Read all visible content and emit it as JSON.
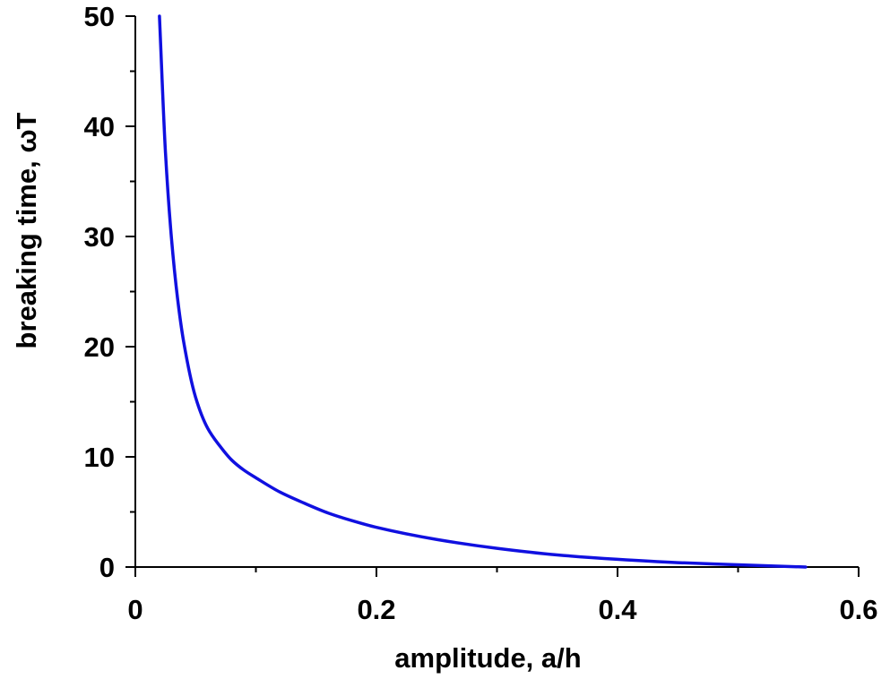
{
  "chart_data": {
    "type": "line",
    "title": "",
    "xlabel": "amplitude, a/h",
    "ylabel": "breaking time, ωT",
    "xlim": [
      0,
      0.6
    ],
    "ylim": [
      0,
      50
    ],
    "x_ticks": [
      {
        "value": 0,
        "label": "0"
      },
      {
        "value": 0.2,
        "label": "0.2"
      },
      {
        "value": 0.4,
        "label": "0.4"
      },
      {
        "value": 0.6,
        "label": "0.6"
      }
    ],
    "y_ticks": [
      {
        "value": 0,
        "label": "0"
      },
      {
        "value": 10,
        "label": "10"
      },
      {
        "value": 20,
        "label": "20"
      },
      {
        "value": 30,
        "label": "30"
      },
      {
        "value": 40,
        "label": "40"
      },
      {
        "value": 50,
        "label": "50"
      }
    ],
    "x_minor_step": 0.1,
    "y_minor_step": 5,
    "grid": false,
    "legend": "none",
    "colors": {
      "series": "#1010e0",
      "axis": "#000000"
    },
    "series": [
      {
        "x": [
          0.02,
          0.025,
          0.03,
          0.035,
          0.04,
          0.05,
          0.06,
          0.07,
          0.08,
          0.09,
          0.1,
          0.12,
          0.14,
          0.16,
          0.18,
          0.2,
          0.25,
          0.3,
          0.35,
          0.4,
          0.45,
          0.5,
          0.556
        ],
        "y": [
          50,
          37.6,
          29.8,
          24.4,
          20.5,
          15.4,
          12.6,
          11.0,
          9.7,
          8.8,
          8.1,
          6.8,
          5.8,
          4.9,
          4.2,
          3.6,
          2.5,
          1.7,
          1.1,
          0.7,
          0.4,
          0.2,
          0.0
        ]
      }
    ]
  }
}
